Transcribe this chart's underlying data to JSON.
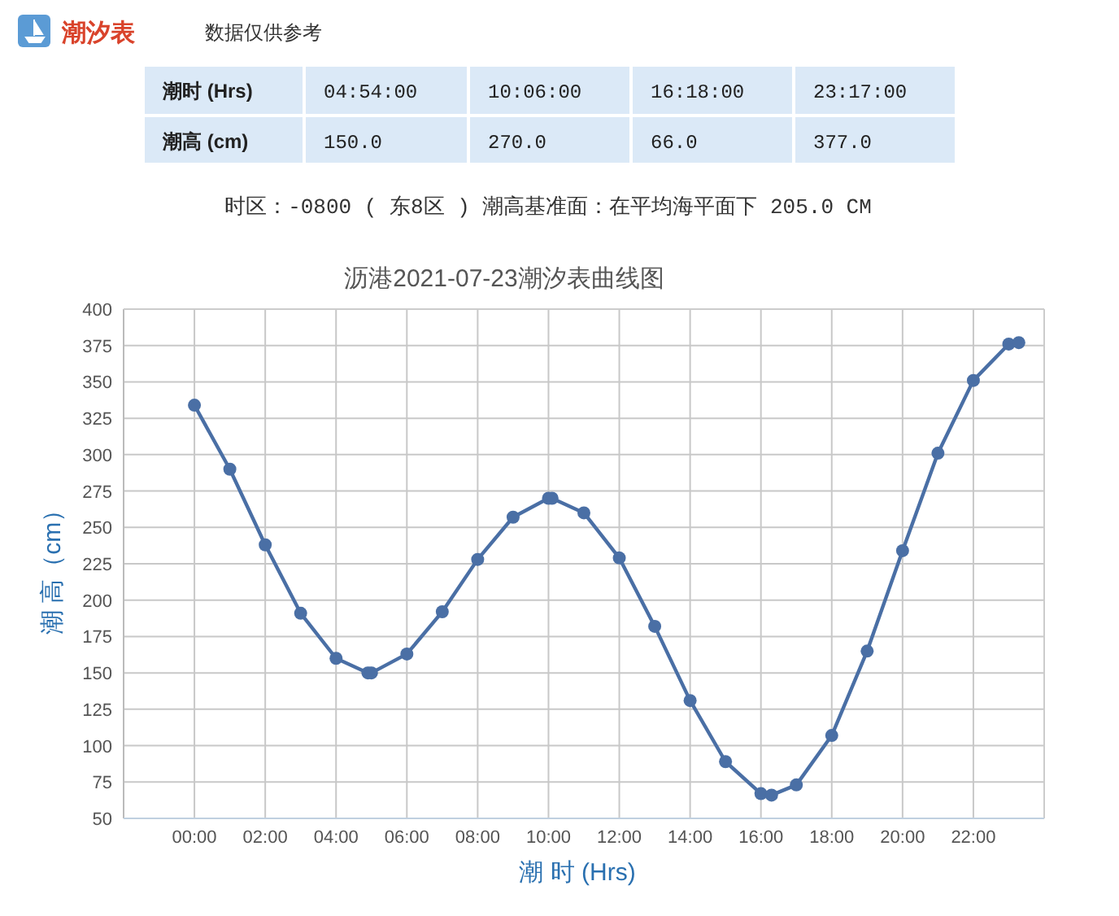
{
  "chart_data": {
    "type": "line",
    "title": "沥港2021-07-23潮汐表曲线图",
    "xlabel": "潮 时 (Hrs)",
    "ylabel": "潮 高（cm）",
    "annotations": [
      "潮汐表",
      "数据仅供参考",
      "潮时 (Hrs)",
      "04:54:00",
      "10:06:00",
      "16:18:00",
      "23:17:00",
      "潮高 (cm)",
      "150.0",
      "270.0",
      "66.0",
      "377.0",
      "时区：-0800 ( 东8区 ) 潮高基准面：在平均海平面下 205.0 CM"
    ],
    "series": [
      {
        "color": "#4a6fa5",
        "x": [
          0,
          1,
          2,
          3,
          4,
          4.9,
          5,
          6,
          7,
          8,
          9,
          10,
          10.1,
          11,
          12,
          13,
          14,
          15,
          16,
          16.3,
          17,
          18,
          19,
          20,
          21,
          22,
          23,
          23.2833
        ],
        "values": [
          334,
          290,
          238,
          191,
          160,
          150,
          150,
          163,
          192,
          228,
          257,
          270,
          270,
          260,
          229,
          182,
          131,
          89,
          67,
          66,
          73,
          107,
          165,
          234,
          301,
          351,
          376,
          377
        ]
      }
    ],
    "xlim": [
      -2,
      24
    ],
    "xticks": [
      {
        "value": 0,
        "label": "00:00"
      },
      {
        "value": 2,
        "label": "02:00"
      },
      {
        "value": 4,
        "label": "04:00"
      },
      {
        "value": 6,
        "label": "06:00"
      },
      {
        "value": 8,
        "label": "08:00"
      },
      {
        "value": 10,
        "label": "10:00"
      },
      {
        "value": 12,
        "label": "12:00"
      },
      {
        "value": 14,
        "label": "14:00"
      },
      {
        "value": 16,
        "label": "16:00"
      },
      {
        "value": 18,
        "label": "18:00"
      },
      {
        "value": 20,
        "label": "20:00"
      },
      {
        "value": 22,
        "label": "22:00"
      }
    ],
    "ylim": [
      50,
      400
    ],
    "yticks": [
      50,
      75,
      100,
      125,
      150,
      175,
      200,
      225,
      250,
      275,
      300,
      325,
      350,
      375,
      400
    ],
    "grid": true,
    "marker": "circle",
    "line_style": "solid"
  }
}
